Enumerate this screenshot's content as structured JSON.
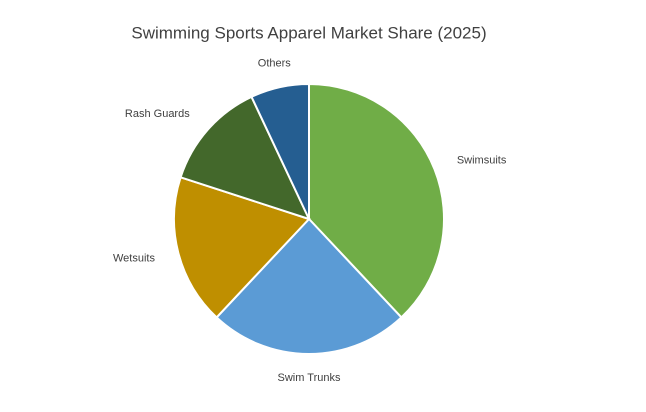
{
  "chart_data": {
    "type": "pie",
    "title": "Swimming Sports Apparel Market Share (2025)",
    "categories": [
      "Swimsuits",
      "Swim Trunks",
      "Wetsuits",
      "Rash Guards",
      "Others"
    ],
    "values": [
      38,
      24,
      18,
      13,
      7
    ],
    "colors": [
      "#70ad47",
      "#5b9bd5",
      "#bf8f00",
      "#43682b",
      "#255e91"
    ]
  }
}
